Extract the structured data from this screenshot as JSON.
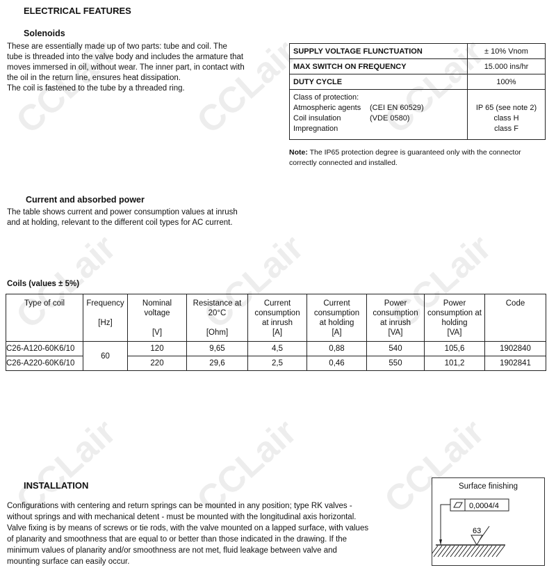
{
  "watermark": "CCLair",
  "electrical": {
    "title": "ELECTRICAL FEATURES",
    "solenoids_title": "Solenoids",
    "solenoids_text": [
      "These are essentially made up of two parts:  tube and coil.  The",
      "tube is threaded into the valve body and includes the armature that",
      "moves immersed in oil, without wear.  The inner part, in contact with",
      "the oil in the return line, ensures heat dissipation.",
      "The coil is fastened to the tube by a threaded ring."
    ],
    "spec_rows": [
      {
        "label": "SUPPLY VOLTAGE FLUNCTUATION",
        "value": "± 10% Vnom"
      },
      {
        "label": "MAX SWITCH ON FREQUENCY",
        "value": "15.000 ins/hr"
      },
      {
        "label": "DUTY CYCLE",
        "value": "100%"
      }
    ],
    "protection": {
      "heading": "Class of protection:",
      "items": [
        {
          "name": "Atmospheric agents",
          "std": "(CEI EN 60529)",
          "value": "IP 65 (see note 2)"
        },
        {
          "name": "Coil insulation",
          "std": "(VDE 0580)",
          "value": "class H"
        },
        {
          "name": "Impregnation",
          "std": "",
          "value": "class F"
        }
      ]
    },
    "note_label": "Note:",
    "note_text": " The IP65 protection degree is guaranteed only with the connector correctly connected and installed."
  },
  "power": {
    "title": "Current and absorbed power",
    "text": [
      "The table shows current and power consumption values at inrush",
      "and at holding, relevant to the different coil types for  AC current."
    ]
  },
  "coils": {
    "caption": "Coils (values ± 5%)",
    "headers": [
      {
        "name": "Type of coil",
        "unit": ""
      },
      {
        "name": "Frequency",
        "unit": "[Hz]"
      },
      {
        "name": "Nominal voltage",
        "unit": "[V]"
      },
      {
        "name": "Resistance at 20°C",
        "unit": "[Ohm]"
      },
      {
        "name": "Current consumption at inrush",
        "unit": "[A]"
      },
      {
        "name": "Current consumption at holding",
        "unit": "[A]"
      },
      {
        "name": "Power consumption at inrush",
        "unit": "[VA]"
      },
      {
        "name": "Power consumption at holding",
        "unit": "[VA]"
      },
      {
        "name": "Code",
        "unit": ""
      }
    ],
    "frequency": "60",
    "rows": [
      [
        "C26-A120-60K6/10",
        "120",
        "9,65",
        "4,5",
        "0,88",
        "540",
        "105,6",
        "1902840"
      ],
      [
        "C26-A220-60K6/10",
        "220",
        "29,6",
        "2,5",
        "0,46",
        "550",
        "101,2",
        "1902841"
      ]
    ]
  },
  "installation": {
    "title": "INSTALLATION",
    "text": [
      "Configurations with centering and return springs can be mounted in any position; type RK valves -",
      "without  springs and with mechanical detent - must be mounted with the longitudinal axis horizontal.",
      "Valve fixing is by means of screws or tie rods, with the valve mounted on a lapped surface, with values",
      "of planarity and smoothness that are equal to or better than those indicated in the drawing.  If the",
      "minimum values of planarity and/or smoothness are not met, fluid leakage between valve and",
      "mounting surface can easily occur."
    ],
    "surface": {
      "title": "Surface finishing",
      "flatness": "0,0004/4",
      "roughness": "63"
    }
  }
}
